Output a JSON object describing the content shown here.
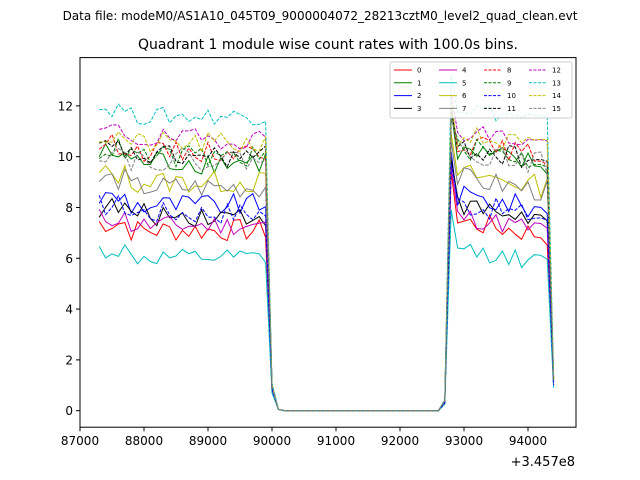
{
  "chart_data": {
    "type": "line",
    "suptitle": "Data file: modeM0/AS1A10_045T09_9000004072_28213cztM0_level2_quad_clean.evt",
    "title": "Quadrant 1 module wise count rates with 100.0s bins.",
    "xlabel": "",
    "ylabel": "",
    "x_offset_label": "+3.457e8",
    "xlim": [
      87000,
      94750
    ],
    "ylim": [
      -0.65,
      13.9
    ],
    "x_ticks": [
      87000,
      88000,
      89000,
      90000,
      91000,
      92000,
      93000,
      94000
    ],
    "y_ticks": [
      0,
      2,
      4,
      6,
      8,
      10,
      12
    ],
    "grid": false,
    "legend_position": "top-right",
    "x_segments": {
      "first_start": 87300,
      "first_end": 89900,
      "drop": [
        90000,
        90100
      ],
      "zero_range": [
        90100,
        92600
      ],
      "rise": [
        92700,
        92800
      ],
      "second_start": 92800,
      "second_end": 94300,
      "final_x": 94400,
      "step": 100
    },
    "series": [
      {
        "name": "0",
        "color": "#ff0000",
        "dash": "solid",
        "level": 7.1,
        "amp": 0.45,
        "drop": [
          0.8,
          0.05
        ],
        "rise": [
          0.3,
          9.4
        ],
        "end": 1.0
      },
      {
        "name": "1",
        "color": "#008000",
        "dash": "solid",
        "level": 9.8,
        "amp": 0.5,
        "drop": [
          0.9,
          0.05
        ],
        "rise": [
          0.4,
          11.8
        ],
        "end": 1.2
      },
      {
        "name": "2",
        "color": "#0000ff",
        "dash": "solid",
        "level": 8.1,
        "amp": 0.45,
        "drop": [
          0.85,
          0.05
        ],
        "rise": [
          0.3,
          10.2
        ],
        "end": 1.1
      },
      {
        "name": "3",
        "color": "#000000",
        "dash": "solid",
        "level": 7.7,
        "amp": 0.45,
        "drop": [
          0.85,
          0.05
        ],
        "rise": [
          0.3,
          9.9
        ],
        "end": 1.3
      },
      {
        "name": "4",
        "color": "#bf00bf",
        "dash": "solid",
        "level": 7.3,
        "amp": 0.4,
        "drop": [
          0.8,
          0.05
        ],
        "rise": [
          0.3,
          9.6
        ],
        "end": 1.0
      },
      {
        "name": "5",
        "color": "#00bfbf",
        "dash": "solid",
        "level": 6.0,
        "amp": 0.35,
        "drop": [
          0.7,
          0.05
        ],
        "rise": [
          0.25,
          7.9
        ],
        "end": 0.9
      },
      {
        "name": "6",
        "color": "#bfbf00",
        "dash": "solid",
        "level": 9.0,
        "amp": 0.45,
        "drop": [
          0.9,
          0.05
        ],
        "rise": [
          0.35,
          10.9
        ],
        "end": 1.2
      },
      {
        "name": "7",
        "color": "#808080",
        "dash": "solid",
        "level": 8.8,
        "amp": 0.45,
        "drop": [
          0.9,
          0.05
        ],
        "rise": [
          0.35,
          10.6
        ],
        "end": 1.1
      },
      {
        "name": "8",
        "color": "#ff0000",
        "dash": "dashed",
        "level": 10.2,
        "amp": 0.4,
        "drop": [
          1.0,
          0.05
        ],
        "rise": [
          0.4,
          12.0
        ],
        "end": 1.3
      },
      {
        "name": "9",
        "color": "#008000",
        "dash": "dashed",
        "level": 10.0,
        "amp": 0.45,
        "drop": [
          1.0,
          0.05
        ],
        "rise": [
          0.4,
          11.5
        ],
        "end": 1.2
      },
      {
        "name": "10",
        "color": "#0000ff",
        "dash": "dashed",
        "level": 7.8,
        "amp": 0.45,
        "drop": [
          0.85,
          0.05
        ],
        "rise": [
          0.3,
          9.7
        ],
        "end": 1.0
      },
      {
        "name": "11",
        "color": "#000000",
        "dash": "dashed",
        "level": 10.0,
        "amp": 0.45,
        "drop": [
          1.0,
          0.05
        ],
        "rise": [
          0.4,
          11.9
        ],
        "end": 1.2
      },
      {
        "name": "12",
        "color": "#bf00bf",
        "dash": "dashed",
        "level": 10.7,
        "amp": 0.4,
        "drop": [
          1.0,
          0.05
        ],
        "rise": [
          0.4,
          12.5
        ],
        "end": 1.3
      },
      {
        "name": "13",
        "color": "#00bfbf",
        "dash": "dashed",
        "level": 11.6,
        "amp": 0.35,
        "drop": [
          1.1,
          0.05
        ],
        "rise": [
          0.45,
          13.2
        ],
        "end": 1.4
      },
      {
        "name": "14",
        "color": "#bfbf00",
        "dash": "dashed",
        "level": 10.5,
        "amp": 0.45,
        "drop": [
          1.0,
          0.05
        ],
        "rise": [
          0.4,
          12.2
        ],
        "end": 1.3
      },
      {
        "name": "15",
        "color": "#808080",
        "dash": "dashed",
        "level": 9.9,
        "amp": 0.45,
        "drop": [
          0.95,
          0.05
        ],
        "rise": [
          0.4,
          11.6
        ],
        "end": 1.2
      }
    ]
  }
}
